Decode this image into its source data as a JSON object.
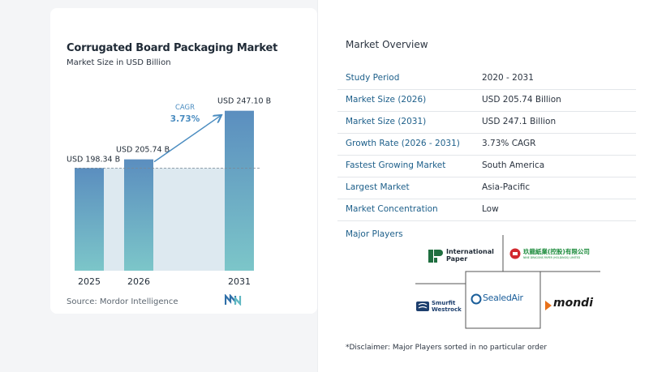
{
  "chart_data": {
    "type": "bar",
    "title": "Corrugated Board Packaging Market",
    "subtitle": "Market Size in USD Billion",
    "categories": [
      "2025",
      "2026",
      "2031"
    ],
    "values": [
      198.34,
      205.74,
      247.1
    ],
    "data_labels": [
      "USD 198.34 B",
      "USD 205.74 B",
      "USD 247.10 B"
    ],
    "cagr_label": "CAGR",
    "cagr_value": "3.73%",
    "grid": false,
    "colors": {
      "bar_top": "#5b8ebf",
      "bar_bottom": "#7cc6c9",
      "band": "#dde9f0",
      "arrow": "#4a8cc0",
      "cagr": "#4a8cc0"
    }
  },
  "source": "Source:  Mordor Intelligence",
  "brand_logo_icon": "mordor-intelligence-logo",
  "overview": {
    "title": "Market Overview",
    "rows": [
      {
        "label": "Study Period",
        "value": "2020 - 2031"
      },
      {
        "label": "Market Size (2026)",
        "value": "USD 205.74 Billion"
      },
      {
        "label": "Market Size (2031)",
        "value": "USD 247.1 Billion"
      },
      {
        "label": "Growth Rate (2026 - 2031)",
        "value": "3.73% CAGR"
      },
      {
        "label": "Fastest Growing Market",
        "value": "South America"
      },
      {
        "label": "Largest Market",
        "value": "Asia-Pacific"
      },
      {
        "label": "Market Concentration",
        "value": "Low"
      }
    ]
  },
  "players": {
    "title": "Major Players",
    "logos": [
      {
        "name": "International Paper",
        "line1": "International",
        "line2": "Paper",
        "color": "#1f6e3f"
      },
      {
        "name": "Nine Dragons Paper",
        "line1": "玖龍紙業(控股)有限公司",
        "line2": "NINE DRAGONS PAPER (HOLDINGS) LIMITED",
        "color": "#1a8a3a"
      },
      {
        "name": "Smurfit Westrock",
        "line1": "Smurfit",
        "line2": "Westrock",
        "color": "#1d3f6e"
      },
      {
        "name": "Sealed Air",
        "line1": "SealedAir",
        "color": "#1a5e9a"
      },
      {
        "name": "Mondi",
        "line1": "mondi",
        "color": "#1a1a1a"
      }
    ]
  },
  "disclaimer": "*Disclaimer: Major Players sorted in no particular order"
}
